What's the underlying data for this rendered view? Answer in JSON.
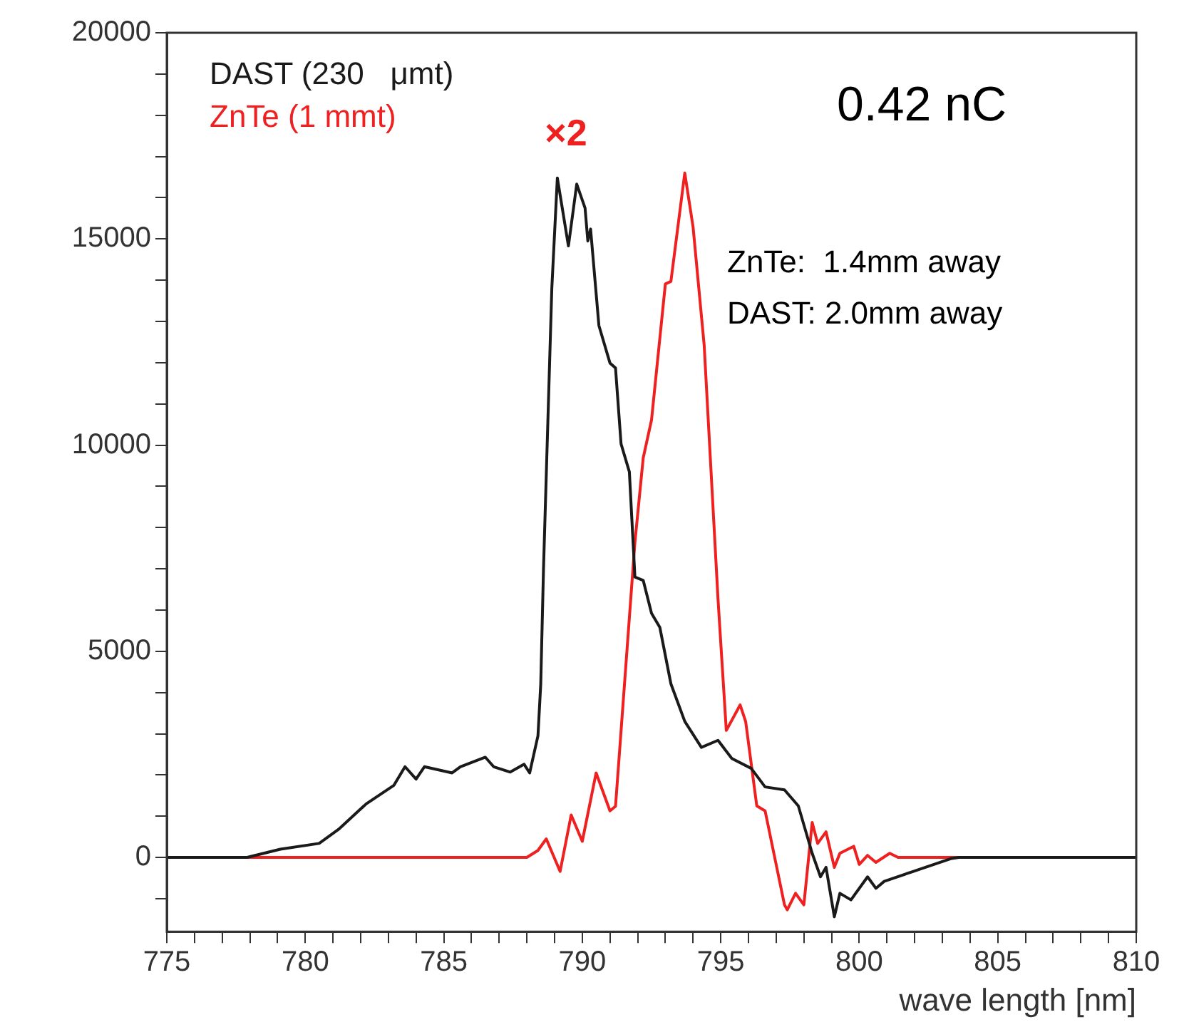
{
  "chart_data": {
    "type": "line",
    "xlabel": "wave length [nm]",
    "legend": "top left",
    "grid": false,
    "marker": "none",
    "line_style": "solid",
    "xlim": [
      775,
      810
    ],
    "ylim": [
      -1800,
      20000
    ],
    "xticks": [
      775,
      {
        "value": 776,
        "label": null
      },
      {
        "value": 777,
        "label": null
      },
      {
        "value": 778,
        "label": null
      },
      {
        "value": 779,
        "label": null
      },
      780,
      {
        "value": 781,
        "label": null
      },
      {
        "value": 782,
        "label": null
      },
      {
        "value": 783,
        "label": null
      },
      {
        "value": 784,
        "label": null
      },
      785,
      {
        "value": 786,
        "label": null
      },
      {
        "value": 787,
        "label": null
      },
      {
        "value": 788,
        "label": null
      },
      {
        "value": 789,
        "label": null
      },
      790,
      {
        "value": 791,
        "label": null
      },
      {
        "value": 792,
        "label": null
      },
      {
        "value": 793,
        "label": null
      },
      {
        "value": 794,
        "label": null
      },
      795,
      {
        "value": 796,
        "label": null
      },
      {
        "value": 797,
        "label": null
      },
      {
        "value": 798,
        "label": null
      },
      {
        "value": 799,
        "label": null
      },
      800,
      {
        "value": 801,
        "label": null
      },
      {
        "value": 802,
        "label": null
      },
      {
        "value": 803,
        "label": null
      },
      {
        "value": 804,
        "label": null
      },
      805,
      {
        "value": 806,
        "label": null
      },
      {
        "value": 807,
        "label": null
      },
      {
        "value": 808,
        "label": null
      },
      {
        "value": 809,
        "label": null
      },
      810
    ],
    "yticks": [
      {
        "value": -1000,
        "label": null
      },
      0,
      {
        "value": 1000,
        "label": null
      },
      {
        "value": 2000,
        "label": null
      },
      {
        "value": 3000,
        "label": null
      },
      {
        "value": 4000,
        "label": null
      },
      5000,
      {
        "value": 6000,
        "label": null
      },
      {
        "value": 7000,
        "label": null
      },
      {
        "value": 8000,
        "label": null
      },
      {
        "value": 9000,
        "label": null
      },
      10000,
      {
        "value": 11000,
        "label": null
      },
      {
        "value": 12000,
        "label": null
      },
      {
        "value": 13000,
        "label": null
      },
      {
        "value": 14000,
        "label": null
      },
      15000,
      {
        "value": 16000,
        "label": null
      },
      {
        "value": 17000,
        "label": null
      },
      {
        "value": 18000,
        "label": null
      },
      {
        "value": 19000,
        "label": null
      },
      20000
    ],
    "annotations": [
      "×2",
      "0.42 nC",
      "ZnTe:  1.4mm away",
      "DAST: 2.0mm away"
    ],
    "series": [
      {
        "name": "DAST (230   μmt)",
        "color": "#1a1a1a",
        "x": [
          775,
          777.9,
          779.1,
          780.5,
          781.2,
          782.2,
          783.2,
          783.6,
          784.0,
          784.3,
          785.3,
          785.6,
          786.5,
          786.8,
          787.4,
          787.9,
          788.1,
          788.4,
          788.5,
          788.6,
          788.9,
          789.1,
          789.5,
          789.8,
          790.1,
          790.2,
          790.3,
          790.6,
          791.0,
          791.2,
          791.4,
          791.7,
          791.9,
          792.2,
          792.5,
          792.8,
          793.2,
          793.7,
          794.3,
          794.9,
          795.4,
          796.1,
          796.6,
          797.3,
          797.8,
          798.3,
          798.6,
          798.8,
          799.1,
          799.3,
          799.7,
          800.3,
          800.6,
          800.9,
          801.9,
          803.3,
          803.6,
          810
        ],
        "values": [
          0,
          0,
          200,
          340,
          680,
          1300,
          1750,
          2200,
          1900,
          2200,
          2050,
          2200,
          2430,
          2200,
          2070,
          2260,
          2050,
          2950,
          4200,
          7000,
          13800,
          16480,
          14830,
          16330,
          15750,
          14950,
          15240,
          12900,
          11990,
          11870,
          10030,
          9350,
          6800,
          6720,
          5920,
          5580,
          4210,
          3300,
          2670,
          2840,
          2400,
          2160,
          1710,
          1640,
          1250,
          100,
          -470,
          -240,
          -1440,
          -870,
          -1030,
          -470,
          -750,
          -580,
          -350,
          -30,
          0,
          0
        ]
      },
      {
        "name": "ZnTe (1 mmt)",
        "color": "#ee2020",
        "x": [
          775,
          788.0,
          788.4,
          788.7,
          789.2,
          789.6,
          790.0,
          790.5,
          791.0,
          791.2,
          791.9,
          792.2,
          792.5,
          793.0,
          793.2,
          793.7,
          794.0,
          794.4,
          794.9,
          795.2,
          795.7,
          795.9,
          796.3,
          796.6,
          797.3,
          797.4,
          797.7,
          798.0,
          798.3,
          798.5,
          798.8,
          799.1,
          799.3,
          799.8,
          800.0,
          800.3,
          800.6,
          801.1,
          801.4,
          810
        ],
        "values": [
          0,
          0,
          170,
          450,
          -340,
          1030,
          390,
          2050,
          1130,
          1240,
          7640,
          9690,
          10610,
          13910,
          13970,
          16600,
          15290,
          12430,
          6270,
          3080,
          3700,
          3290,
          1250,
          1130,
          -1150,
          -1270,
          -870,
          -1150,
          850,
          340,
          620,
          -240,
          100,
          270,
          -170,
          50,
          -120,
          100,
          0,
          0
        ]
      }
    ]
  }
}
